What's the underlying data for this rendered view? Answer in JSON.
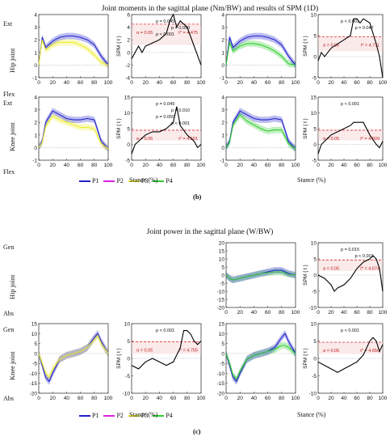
{
  "section_b": {
    "title": "Joint moments in the sagittal plane (Nm/BW) and results of SPM (1D)",
    "row_labels": [
      "Hip joint",
      "Knee joint"
    ],
    "ext_label": "Ext",
    "flex_label": "Flex",
    "xlabel": "Stance (%)",
    "caption": "(b)"
  },
  "section_c": {
    "title": "Joint power in the sagittal plane (W/BW)",
    "row_labels": [
      "Hip joint",
      "Knee joint"
    ],
    "gen_label": "Gen",
    "abs_label": "Abs",
    "xlabel": "Stance (%)",
    "caption": "(c)"
  },
  "legend": [
    {
      "name": "P1",
      "color": "#2222cc"
    },
    {
      "name": "P2",
      "color": "#dd22dd"
    },
    {
      "name": "P3",
      "color": "#eeee33"
    },
    {
      "name": "P4",
      "color": "#33cc33"
    }
  ],
  "chart_data": [
    {
      "id": "b_hip_p1p3",
      "type": "line",
      "x": [
        0,
        5,
        10,
        20,
        30,
        40,
        50,
        60,
        70,
        80,
        90,
        100
      ],
      "series": [
        {
          "name": "P1",
          "values": [
            0,
            2.2,
            1.4,
            1.9,
            2.2,
            2.3,
            2.3,
            2.2,
            2.0,
            1.6,
            0.7,
            0.0
          ]
        },
        {
          "name": "P3",
          "values": [
            0,
            2.0,
            1.2,
            1.6,
            1.8,
            1.8,
            1.8,
            1.6,
            1.3,
            0.8,
            0.2,
            0.0
          ]
        }
      ],
      "xlim": [
        0,
        100
      ],
      "ylim": [
        -1,
        4
      ],
      "yticks": [
        -1,
        0,
        1,
        2,
        3,
        4
      ],
      "xticks": [
        0,
        20,
        40,
        60,
        80,
        100
      ]
    },
    {
      "id": "b_hip_spm_p1p3",
      "type": "line",
      "ylabel": "SPM { t }",
      "x": [
        0,
        5,
        10,
        15,
        20,
        30,
        40,
        50,
        55,
        60,
        65,
        70,
        80,
        90,
        100
      ],
      "series": [
        {
          "name": "SPM",
          "values": [
            -1,
            0,
            1,
            0,
            1,
            1.5,
            2,
            3,
            5,
            6,
            4,
            5,
            4,
            1,
            -2
          ]
        }
      ],
      "threshold": 4.475,
      "alpha": "α = 0.05",
      "t_star": "t* = 4.475",
      "p_values": [
        "p = 0.045",
        "p = 0.050",
        "p < 0.001"
      ],
      "xlim": [
        0,
        100
      ],
      "ylim": [
        -4,
        6
      ],
      "yticks": [
        -4,
        -2,
        0,
        2,
        4,
        6
      ]
    },
    {
      "id": "b_hip_p1p4",
      "type": "line",
      "x": [
        0,
        5,
        10,
        20,
        30,
        40,
        50,
        60,
        70,
        80,
        90,
        100
      ],
      "series": [
        {
          "name": "P1",
          "values": [
            0,
            2.2,
            1.4,
            1.9,
            2.2,
            2.3,
            2.3,
            2.2,
            2.0,
            1.6,
            0.7,
            0.0
          ]
        },
        {
          "name": "P4",
          "values": [
            0,
            1.8,
            1.1,
            1.5,
            1.7,
            1.7,
            1.6,
            1.4,
            1.1,
            0.7,
            0.1,
            0.0
          ]
        }
      ],
      "xlim": [
        0,
        100
      ],
      "ylim": [
        -1,
        4
      ],
      "yticks": [
        -1,
        0,
        1,
        2,
        3,
        4
      ],
      "xticks": [
        0,
        20,
        40,
        60,
        80,
        100
      ]
    },
    {
      "id": "b_hip_spm_p1p4",
      "type": "line",
      "ylabel": "SPM { t }",
      "x": [
        0,
        5,
        10,
        20,
        30,
        40,
        50,
        55,
        60,
        65,
        70,
        80,
        90,
        95,
        100
      ],
      "series": [
        {
          "name": "SPM",
          "values": [
            -1,
            1,
            0,
            2,
            3,
            4,
            5,
            9,
            9,
            8,
            9,
            8,
            3,
            0,
            -5
          ]
        }
      ],
      "threshold": 4.711,
      "alpha": "α = 0.05",
      "t_star": "t* = 4.711",
      "p_values": [
        "p < 0.001",
        "p = 0.047"
      ],
      "xlim": [
        0,
        100
      ],
      "ylim": [
        -5,
        10
      ],
      "yticks": [
        -5,
        0,
        5,
        10
      ]
    },
    {
      "id": "b_knee_p1p3",
      "type": "line",
      "x": [
        0,
        5,
        10,
        20,
        30,
        40,
        50,
        60,
        70,
        80,
        90,
        100
      ],
      "series": [
        {
          "name": "P1",
          "values": [
            0,
            0.5,
            2.0,
            2.9,
            2.6,
            2.3,
            2.2,
            2.2,
            2.3,
            2.2,
            0.5,
            -0.1
          ]
        },
        {
          "name": "P3",
          "values": [
            0,
            0.4,
            1.7,
            2.5,
            2.2,
            2.0,
            1.8,
            1.6,
            1.6,
            1.5,
            0.3,
            -0.1
          ]
        }
      ],
      "xlim": [
        0,
        100
      ],
      "ylim": [
        -1,
        4
      ],
      "yticks": [
        -1,
        0,
        1,
        2,
        3,
        4
      ],
      "xticks": [
        0,
        20,
        40,
        60,
        80,
        100
      ]
    },
    {
      "id": "b_knee_spm_p1p3",
      "type": "line",
      "ylabel": "SPM { t }",
      "x": [
        0,
        5,
        10,
        20,
        30,
        40,
        50,
        55,
        60,
        65,
        70,
        80,
        90,
        95,
        100
      ],
      "series": [
        {
          "name": "SPM",
          "values": [
            -3,
            0,
            1,
            3,
            4,
            4,
            5,
            6,
            7,
            12,
            6,
            3,
            1,
            -1,
            0
          ]
        }
      ],
      "threshold": 4.501,
      "alpha": "α = 0.05",
      "t_star": "t* = 4.501",
      "p_values": [
        "p = 0.049",
        "p = 0.010",
        "p = 0.050",
        "p < 0.001"
      ],
      "xlim": [
        0,
        100
      ],
      "ylim": [
        -5,
        15
      ],
      "yticks": [
        -5,
        0,
        5,
        10,
        15
      ]
    },
    {
      "id": "b_knee_p1p4",
      "type": "line",
      "x": [
        0,
        5,
        10,
        20,
        30,
        40,
        50,
        60,
        70,
        80,
        90,
        100
      ],
      "series": [
        {
          "name": "P1",
          "values": [
            0,
            0.5,
            2.0,
            2.9,
            2.6,
            2.3,
            2.2,
            2.2,
            2.3,
            2.2,
            0.5,
            -0.1
          ]
        },
        {
          "name": "P4",
          "values": [
            0,
            0.4,
            1.8,
            2.6,
            2.1,
            1.8,
            1.5,
            1.3,
            1.4,
            1.4,
            0.3,
            -0.1
          ]
        }
      ],
      "xlim": [
        0,
        100
      ],
      "ylim": [
        -1,
        4
      ],
      "yticks": [
        -1,
        0,
        1,
        2,
        3,
        4
      ],
      "xticks": [
        0,
        20,
        40,
        60,
        80,
        100
      ]
    },
    {
      "id": "b_knee_spm_p1p4",
      "type": "line",
      "ylabel": "SPM { t }",
      "x": [
        0,
        5,
        10,
        20,
        30,
        40,
        50,
        55,
        60,
        70,
        80,
        90,
        95,
        100
      ],
      "series": [
        {
          "name": "SPM",
          "values": [
            -3,
            0,
            1,
            3,
            4,
            5,
            6,
            7,
            7,
            7,
            3,
            0,
            -1,
            1
          ]
        }
      ],
      "threshold": 4.509,
      "alpha": "α = 0.05",
      "t_star": "t* = 4.509",
      "p_values": [
        "p < 0.001"
      ],
      "xlim": [
        0,
        100
      ],
      "ylim": [
        -5,
        15
      ],
      "yticks": [
        -5,
        0,
        5,
        10,
        15
      ]
    },
    {
      "id": "c_hip_p1p4",
      "type": "line",
      "x": [
        0,
        5,
        10,
        20,
        30,
        40,
        50,
        60,
        70,
        80,
        90,
        100
      ],
      "series": [
        {
          "name": "P1",
          "values": [
            0,
            -2,
            -3,
            -2,
            -1,
            0,
            1,
            2,
            3,
            3,
            1,
            0
          ]
        },
        {
          "name": "P4",
          "values": [
            0,
            -2,
            -3,
            -2,
            -1,
            0,
            1,
            1.5,
            2,
            2,
            0.5,
            0
          ]
        }
      ],
      "xlim": [
        0,
        100
      ],
      "ylim": [
        -20,
        20
      ],
      "yticks": [
        -20,
        -15,
        -10,
        -5,
        0,
        5,
        10,
        15,
        20
      ],
      "xticks": [
        0,
        20,
        40,
        60,
        80,
        100
      ]
    },
    {
      "id": "c_hip_spm_p1p4",
      "type": "line",
      "ylabel": "SPM { t }",
      "x": [
        0,
        10,
        20,
        25,
        30,
        40,
        50,
        60,
        70,
        80,
        85,
        90,
        95,
        100
      ],
      "series": [
        {
          "name": "SPM",
          "values": [
            0,
            -1,
            -3,
            -5,
            -4,
            -3,
            -1,
            2,
            4,
            5,
            6,
            5,
            2,
            -5
          ]
        }
      ],
      "threshold": 4.674,
      "alpha": "α = 0.05",
      "t_star": "t* = 4.674",
      "p_values": [
        "p = 0.015",
        "p < 0.001"
      ],
      "xlim": [
        0,
        100
      ],
      "ylim": [
        -10,
        10
      ],
      "yticks": [
        -10,
        -5,
        0,
        5,
        10
      ]
    },
    {
      "id": "c_knee_p1p3",
      "type": "line",
      "x": [
        0,
        5,
        10,
        15,
        20,
        30,
        40,
        50,
        60,
        70,
        80,
        85,
        90,
        100
      ],
      "series": [
        {
          "name": "P1",
          "values": [
            0,
            -6,
            -12,
            -14,
            -10,
            -3,
            -1,
            0,
            1,
            3,
            8,
            10,
            6,
            0
          ]
        },
        {
          "name": "P3",
          "values": [
            0,
            -5,
            -10,
            -12,
            -8,
            -3,
            -1,
            0,
            1,
            3,
            7,
            9,
            5,
            0
          ]
        }
      ],
      "xlim": [
        0,
        100
      ],
      "ylim": [
        -20,
        15
      ],
      "yticks": [
        -20,
        -15,
        -10,
        -5,
        0,
        5,
        10,
        15
      ],
      "xticks": [
        0,
        20,
        40,
        60,
        80,
        100
      ]
    },
    {
      "id": "c_knee_spm_p1p3",
      "type": "line",
      "ylabel": "SPM { t }",
      "x": [
        0,
        10,
        20,
        30,
        40,
        50,
        60,
        70,
        75,
        80,
        85,
        90,
        95,
        100
      ],
      "series": [
        {
          "name": "SPM",
          "values": [
            -2,
            -3,
            -1,
            0,
            -1,
            -2,
            -1,
            3,
            8,
            8,
            7,
            5,
            4,
            5
          ]
        }
      ],
      "threshold": 4.755,
      "alpha": "α = 0.05",
      "t_star": "t* = 4.755",
      "p_values": [
        "p < 0.001"
      ],
      "xlim": [
        0,
        100
      ],
      "ylim": [
        -10,
        10
      ],
      "yticks": [
        -10,
        -5,
        0,
        5,
        10
      ]
    },
    {
      "id": "c_knee_p1p4",
      "type": "line",
      "x": [
        0,
        5,
        10,
        15,
        20,
        30,
        40,
        50,
        60,
        70,
        80,
        85,
        90,
        100
      ],
      "series": [
        {
          "name": "P1",
          "values": [
            0,
            -6,
            -12,
            -14,
            -10,
            -3,
            -1,
            0,
            1,
            3,
            8,
            10,
            6,
            0
          ]
        },
        {
          "name": "P4",
          "values": [
            0,
            -5,
            -11,
            -13,
            -9,
            -3,
            -1,
            0,
            1,
            2,
            4,
            4,
            3,
            0
          ]
        }
      ],
      "xlim": [
        0,
        100
      ],
      "ylim": [
        -20,
        15
      ],
      "yticks": [
        -20,
        -15,
        -10,
        -5,
        0,
        5,
        10,
        15
      ],
      "xticks": [
        0,
        20,
        40,
        60,
        80,
        100
      ]
    },
    {
      "id": "c_knee_spm_p1p4",
      "type": "line",
      "ylabel": "SPM { t }",
      "x": [
        0,
        10,
        20,
        30,
        40,
        50,
        60,
        70,
        80,
        85,
        90,
        95,
        100
      ],
      "series": [
        {
          "name": "SPM",
          "values": [
            -1,
            -2,
            -3,
            -4,
            -3,
            -2,
            -1,
            1,
            5,
            6,
            5,
            2,
            4
          ]
        }
      ],
      "threshold": 4.65,
      "alpha": "α = 0.05",
      "t_star": "t* = 4.650",
      "p_values": [
        "p < 0.001"
      ],
      "xlim": [
        0,
        100
      ],
      "ylim": [
        -10,
        10
      ],
      "yticks": [
        -10,
        -5,
        0,
        5,
        10
      ]
    }
  ]
}
